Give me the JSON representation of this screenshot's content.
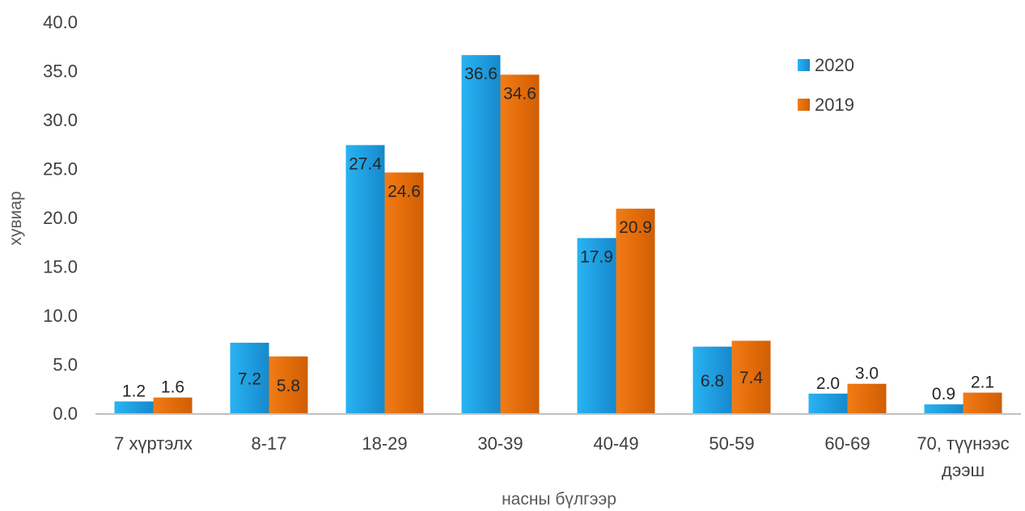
{
  "chart_data": {
    "type": "bar",
    "title": "",
    "xlabel": "насны бүлгээр",
    "ylabel": "хувиар",
    "ylim": [
      0,
      40
    ],
    "yticks": [
      "0.0",
      "5.0",
      "10.0",
      "15.0",
      "20.0",
      "25.0",
      "30.0",
      "35.0",
      "40.0"
    ],
    "grid": false,
    "legend_position": "top-right",
    "categories": [
      "7 хүртэлх",
      "8-17",
      "18-29",
      "30-39",
      "40-49",
      "50-59",
      "60-69",
      "70, түүнээс дээш"
    ],
    "series": [
      {
        "name": "2020",
        "color": "#1f9ee0",
        "values": [
          1.2,
          7.2,
          27.4,
          36.6,
          17.9,
          6.8,
          2.0,
          0.9
        ],
        "labels": [
          "1.2",
          "7.2",
          "27.4",
          "36.6",
          "17.9",
          "6.8",
          "2.0",
          "0.9"
        ]
      },
      {
        "name": "2019",
        "color": "#e36c0a",
        "values": [
          1.6,
          5.8,
          24.6,
          34.6,
          20.9,
          7.4,
          3.0,
          2.1
        ],
        "labels": [
          "1.6",
          "5.8",
          "24.6",
          "34.6",
          "20.9",
          "7.4",
          "3.0",
          "2.1"
        ]
      }
    ]
  }
}
